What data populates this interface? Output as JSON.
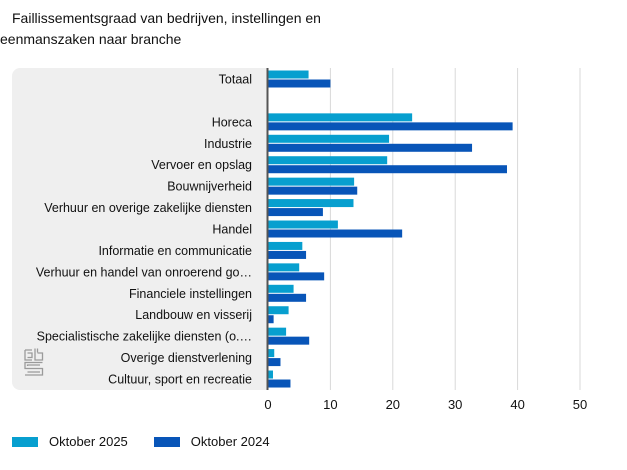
{
  "title_line1": "Faillissementsgraad van bedrijven, instellingen en",
  "title_line2": "eenmanszaken naar branche",
  "colors": {
    "oktober_2025": "#079fcf",
    "oktober_2024": "#0855b8",
    "grid": "#d9d9d9",
    "axis": "#555555"
  },
  "logo": "cbs-logo",
  "chart_data": {
    "type": "bar",
    "orientation": "horizontal",
    "title": "Faillissementsgraad van bedrijven, instellingen en eenmanszaken naar branche",
    "xlabel": "",
    "ylabel": "",
    "xlim": [
      0,
      50
    ],
    "xticks": [
      "0",
      "10",
      "20",
      "30",
      "40",
      "50"
    ],
    "grid": true,
    "legend_position": "bottom-left",
    "categories": [
      "Totaal",
      "",
      "Horeca",
      "Industrie",
      "Vervoer en opslag",
      "Bouwnijverheid",
      "Verhuur en overige zakelijke diensten",
      "Handel",
      "Informatie en communicatie",
      "Verhuur en handel van onroerend go…",
      "Financiele instellingen",
      "Landbouw en visserij",
      "Specialistische zakelijke diensten (o.…",
      "Overige dienstverlening",
      "Cultuur, sport en recreatie"
    ],
    "series": [
      {
        "name": "Oktober 2025",
        "values": [
          6.5,
          null,
          23.1,
          19.4,
          19.1,
          13.8,
          13.7,
          11.2,
          5.5,
          5.0,
          4.1,
          3.3,
          2.9,
          1.0,
          0.8
        ]
      },
      {
        "name": "Oktober 2024",
        "values": [
          10.0,
          null,
          39.2,
          32.7,
          38.3,
          14.3,
          8.8,
          21.5,
          6.1,
          9.0,
          6.1,
          0.9,
          6.6,
          2.0,
          3.6
        ]
      }
    ]
  }
}
